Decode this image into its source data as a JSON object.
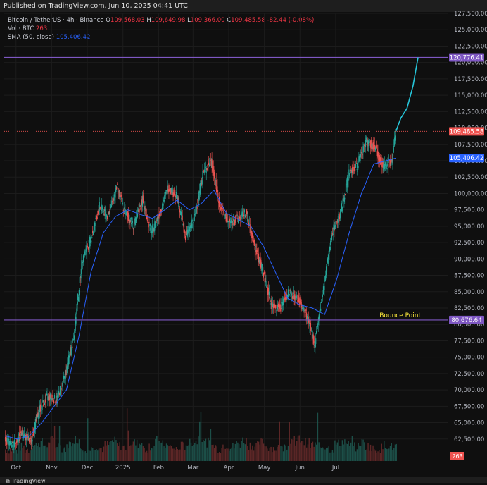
{
  "header": {
    "published": "Published on TradingView.com, Jun 10, 2025 04:41 UTC"
  },
  "legend": {
    "symbol": "Bitcoin / TetherUS · 4h · Binance",
    "o_label": "O",
    "o_value": "109,568.03",
    "h_label": "H",
    "h_value": "109,649.98",
    "l_label": "L",
    "l_value": "109,366.00",
    "c_label": "C",
    "c_value": "109,485.58",
    "change": "-82.44 (-0.08%)",
    "vol_label": "Vol · BTC",
    "vol_value": "263",
    "sma_label": "SMA (50, close)",
    "sma_value": "105,406.42"
  },
  "footer": {
    "logo": "TradingView"
  },
  "colors": {
    "up": "#26a69a",
    "down": "#ef5350",
    "sma": "#2962ff",
    "projection": "#26c6da",
    "level": "#7e57c2",
    "annotation": "#ffeb3b"
  },
  "chart_data": {
    "type": "candlestick",
    "ylim": [
      60000,
      127500
    ],
    "y_ticks": [
      "62,500.00",
      "65,000.00",
      "67,500.00",
      "70,000.00",
      "72,500.00",
      "75,000.00",
      "77,500.00",
      "80,000.00",
      "82,500.00",
      "85,000.00",
      "87,500.00",
      "90,000.00",
      "92,500.00",
      "95,000.00",
      "97,500.00",
      "100,000.00",
      "102,500.00",
      "105,000.00",
      "107,500.00",
      "110,000.00",
      "112,500.00",
      "115,000.00",
      "117,500.00",
      "120,000.00",
      "122,500.00",
      "125,000.00",
      "127,500.00"
    ],
    "x_ticks": [
      "Oct",
      "Nov",
      "Dec",
      "2025",
      "Feb",
      "Mar",
      "Apr",
      "May",
      "Jun",
      "Jul"
    ],
    "price_path": [
      [
        0,
        62500
      ],
      [
        7,
        61500
      ],
      [
        14,
        63500
      ],
      [
        21,
        62000
      ],
      [
        28,
        67000
      ],
      [
        35,
        69000
      ],
      [
        42,
        68500
      ],
      [
        49,
        72000
      ],
      [
        56,
        78000
      ],
      [
        63,
        90000
      ],
      [
        70,
        93000
      ],
      [
        77,
        98000
      ],
      [
        84,
        96500
      ],
      [
        91,
        101000
      ],
      [
        98,
        97000
      ],
      [
        105,
        95000
      ],
      [
        112,
        99000
      ],
      [
        119,
        94000
      ],
      [
        126,
        97000
      ],
      [
        133,
        101000
      ],
      [
        140,
        99500
      ],
      [
        147,
        93500
      ],
      [
        154,
        96000
      ],
      [
        161,
        103000
      ],
      [
        168,
        105000
      ],
      [
        175,
        98000
      ],
      [
        182,
        95500
      ],
      [
        189,
        96000
      ],
      [
        196,
        97000
      ],
      [
        203,
        92000
      ],
      [
        210,
        88000
      ],
      [
        217,
        83000
      ],
      [
        224,
        82500
      ],
      [
        231,
        85000
      ],
      [
        238,
        84000
      ],
      [
        245,
        81500
      ],
      [
        252,
        77000
      ],
      [
        259,
        85000
      ],
      [
        266,
        94000
      ],
      [
        273,
        97000
      ],
      [
        280,
        103000
      ],
      [
        287,
        104500
      ],
      [
        294,
        108000
      ],
      [
        301,
        107000
      ],
      [
        308,
        104000
      ],
      [
        315,
        105000
      ],
      [
        318,
        109485.58
      ]
    ],
    "sma_path": [
      [
        0,
        63000
      ],
      [
        10,
        62500
      ],
      [
        20,
        63000
      ],
      [
        30,
        65000
      ],
      [
        40,
        67500
      ],
      [
        50,
        70000
      ],
      [
        60,
        78000
      ],
      [
        70,
        88000
      ],
      [
        80,
        94000
      ],
      [
        90,
        96500
      ],
      [
        100,
        97500
      ],
      [
        110,
        96800
      ],
      [
        120,
        96200
      ],
      [
        130,
        97500
      ],
      [
        140,
        99000
      ],
      [
        150,
        97500
      ],
      [
        160,
        98500
      ],
      [
        170,
        100500
      ],
      [
        180,
        97000
      ],
      [
        190,
        96000
      ],
      [
        200,
        95000
      ],
      [
        210,
        92000
      ],
      [
        220,
        88000
      ],
      [
        230,
        84000
      ],
      [
        240,
        83000
      ],
      [
        250,
        82500
      ],
      [
        260,
        81500
      ],
      [
        270,
        87000
      ],
      [
        280,
        94000
      ],
      [
        290,
        100000
      ],
      [
        300,
        104500
      ],
      [
        310,
        105000
      ],
      [
        318,
        105406.42
      ]
    ],
    "projection_path": [
      [
        318,
        109485.58
      ],
      [
        322,
        111500
      ],
      [
        327,
        113000
      ],
      [
        332,
        116500
      ],
      [
        336,
        120776.41
      ]
    ],
    "horizontal_levels": [
      {
        "value": 120776.41,
        "label": "120,776.41"
      },
      {
        "value": 80676.64,
        "label": "80,676.64",
        "annotation": "Bounce Point"
      }
    ],
    "last_price": {
      "value": 109485.58,
      "label": "109,485.58"
    },
    "sma_last": {
      "value": 105406.42,
      "label": "105,406.42"
    },
    "volume_last": {
      "value": 263,
      "label": "263"
    },
    "volume_profile": [
      6,
      5,
      8,
      6,
      9,
      12,
      10,
      14,
      9,
      7,
      11,
      15,
      8,
      6,
      9,
      7,
      10,
      13,
      9,
      8,
      12,
      11,
      7,
      9,
      14,
      10,
      8,
      6,
      9,
      11,
      13,
      16,
      12,
      9,
      7,
      10,
      8,
      11,
      14,
      10,
      9,
      12,
      8,
      7,
      6,
      9,
      11,
      15,
      12,
      10,
      8,
      9,
      7,
      11,
      13,
      10,
      8,
      12,
      9,
      6,
      7,
      10,
      8,
      9
    ]
  }
}
